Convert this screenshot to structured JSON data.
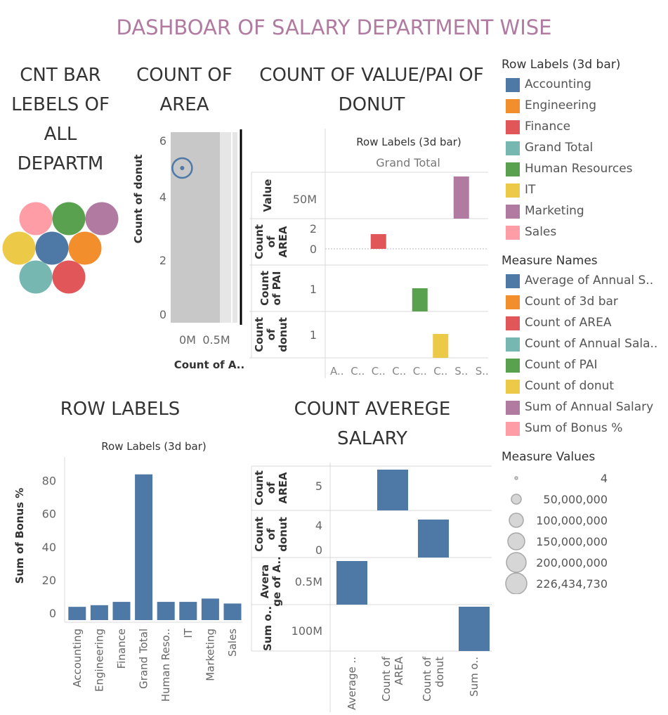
{
  "dashboard_title": "DASHBOAR OF SALARY DEPARTMENT WISE",
  "colors": {
    "Accounting": "#4e79a7",
    "Engineering": "#f28e2b",
    "Finance": "#e15759",
    "Grand Total": "#76b7b2",
    "Human Resources": "#59a14f",
    "IT": "#edc948",
    "Marketing": "#b07aa1",
    "Sales": "#ff9da7",
    "bar_blue": "#4e79a7",
    "title_purple": "#b07aa1"
  },
  "sheets": {
    "bubbles": {
      "title": "CNT BAR LEBELS OF ALL DEPARTM"
    },
    "area": {
      "title": "COUNT OF AREA",
      "ylabel": "Count of donut",
      "xlabel": "Count of A..",
      "yticks": [
        "6",
        "4",
        "2",
        "0"
      ],
      "xticks": [
        "0M",
        "0.5M"
      ]
    },
    "pai": {
      "title": "COUNT OF VALUE/PAI OF DONUT",
      "header": "Row Labels (3d bar)",
      "subheader": "Grand Total",
      "row_labels": [
        "Value",
        "Count of AREA",
        "Count of PAI",
        "Count of donut"
      ],
      "ticks": {
        "value": "50M",
        "area_hi": "2",
        "area_lo": "0",
        "pai": "1",
        "donut": "1"
      },
      "xticks": [
        "A..",
        "C..",
        "C..",
        "C..",
        "C..",
        "C..",
        "S..",
        "S.."
      ]
    },
    "row_labels": {
      "title": "ROW LABELS",
      "header": "Row Labels (3d bar)",
      "ylabel": "Sum of Bonus %",
      "yticks": [
        "80",
        "60",
        "40",
        "20",
        "0"
      ]
    },
    "avg_salary": {
      "title": "COUNT AVEREGE SALARY",
      "row_labels": [
        "Count of AREA",
        "Count of donut",
        "Average of A..",
        "Sum o.."
      ],
      "ticks": {
        "area": "5",
        "donut_hi": "4",
        "donut_lo": "0",
        "avg": "0.5M",
        "sum": "100M"
      },
      "xticks": [
        "Average ..",
        "Count of AREA",
        "Count of donut",
        "Sum o.."
      ]
    }
  },
  "legend": {
    "row_labels_title": "Row Labels (3d bar)",
    "row_labels": [
      "Accounting",
      "Engineering",
      "Finance",
      "Grand Total",
      "Human Resources",
      "IT",
      "Marketing",
      "Sales"
    ],
    "measure_names_title": "Measure Names",
    "measure_names": [
      {
        "label": "Average of Annual S..",
        "color": "#4e79a7"
      },
      {
        "label": "Count of 3d bar",
        "color": "#f28e2b"
      },
      {
        "label": "Count of AREA",
        "color": "#e15759"
      },
      {
        "label": "Count of Annual Sala..",
        "color": "#76b7b2"
      },
      {
        "label": "Count of PAI",
        "color": "#59a14f"
      },
      {
        "label": "Count of donut",
        "color": "#edc948"
      },
      {
        "label": "Sum of Annual Salary",
        "color": "#b07aa1"
      },
      {
        "label": "Sum of Bonus %",
        "color": "#ff9da7"
      }
    ],
    "measure_values_title": "Measure Values",
    "measure_values": [
      "4",
      "50,000,000",
      "100,000,000",
      "150,000,000",
      "200,000,000",
      "226,434,730"
    ]
  },
  "chart_data": [
    {
      "type": "bar",
      "title": "ROW LABELS",
      "xlabel": "Row Labels (3d bar)",
      "ylabel": "Sum of Bonus %",
      "categories": [
        "Accounting",
        "Engineering",
        "Finance",
        "Grand Total",
        "Human Reso..",
        "IT",
        "Marketing",
        "Sales"
      ],
      "values": [
        8,
        9,
        11,
        88,
        11,
        11,
        13,
        10
      ],
      "ylim": [
        0,
        90
      ]
    },
    {
      "type": "scatter",
      "title": "COUNT OF AREA",
      "xlabel": "Count of A..",
      "ylabel": "Count of donut",
      "x": [
        0
      ],
      "y": [
        5
      ],
      "xlim": [
        -0.15,
        0.72
      ],
      "ylim": [
        0,
        6
      ]
    },
    {
      "type": "bar",
      "title": "COUNT OF VALUE/PAI OF DONUT",
      "categories": [
        "A..",
        "C..",
        "C..",
        "C..",
        "C..",
        "C..",
        "S..",
        "S.."
      ],
      "series": [
        {
          "name": "Value",
          "values": [
            0,
            0,
            0,
            0,
            0,
            0,
            75000000,
            0
          ]
        },
        {
          "name": "Count of AREA",
          "values": [
            0,
            0,
            2,
            0,
            0,
            0,
            0,
            0
          ]
        },
        {
          "name": "Count of PAI",
          "values": [
            0,
            0,
            0,
            0,
            1,
            0,
            0,
            0
          ]
        },
        {
          "name": "Count of donut",
          "values": [
            0,
            0,
            0,
            0,
            0,
            1,
            0,
            0
          ]
        }
      ]
    },
    {
      "type": "bar",
      "title": "COUNT AVEREGE SALARY",
      "categories": [
        "Average ..",
        "Count of AREA",
        "Count of donut",
        "Sum o.."
      ],
      "series": [
        {
          "name": "Count of AREA",
          "values": [
            0,
            5.5,
            0,
            0
          ]
        },
        {
          "name": "Count of donut",
          "values": [
            0,
            0,
            5,
            0
          ]
        },
        {
          "name": "Average of A..",
          "values": [
            0.8,
            0,
            0,
            0
          ]
        },
        {
          "name": "Sum o..",
          "values": [
            0,
            0,
            0,
            135
          ]
        }
      ]
    },
    {
      "type": "scatter",
      "title": "CNT BAR LEBELS OF ALL DEPARTM",
      "categories": [
        "Sales",
        "Human Resources",
        "Marketing",
        "IT",
        "Accounting",
        "Engineering",
        "Grand Total",
        "Finance"
      ]
    }
  ]
}
